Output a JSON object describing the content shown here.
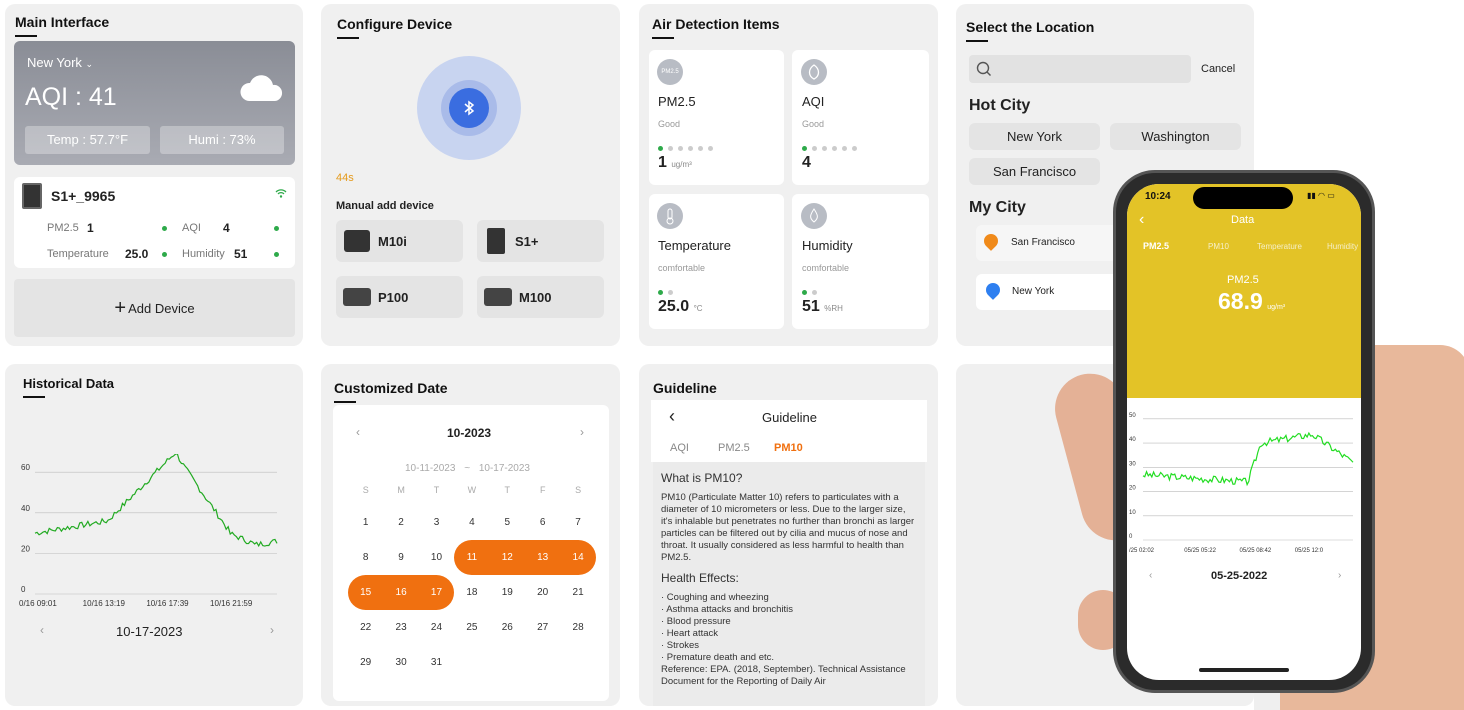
{
  "main": {
    "title": "Main Interface",
    "city": "New York",
    "aqi": "AQI : 41",
    "temp": "Temp : 57.7°F",
    "humi": "Humi : 73%",
    "device_name": "S1+_9965",
    "pm25_label": "PM2.5",
    "pm25_val": "1",
    "aqi_label": "AQI",
    "aqi_val": "4",
    "temperature_label": "Temperature",
    "temperature_val": "25.0",
    "humidity_label": "Humidity",
    "humidity_val": "51",
    "add_device": "Add Device"
  },
  "configure": {
    "title": "Configure Device",
    "timer": "44s",
    "manual": "Manual add device",
    "devices": [
      "M10i",
      "S1+",
      "P100",
      "M100"
    ]
  },
  "air": {
    "title": "Air Detection Items",
    "items": [
      {
        "name": "PM2.5",
        "status": "Good",
        "value": "1",
        "unit": "ug/m³"
      },
      {
        "name": "AQI",
        "status": "Good",
        "value": "4",
        "unit": ""
      },
      {
        "name": "Temperature",
        "status": "comfortable",
        "value": "25.0",
        "unit": "°C"
      },
      {
        "name": "Humidity",
        "status": "comfortable",
        "value": "51",
        "unit": "%RH"
      }
    ]
  },
  "location": {
    "title": "Select the Location",
    "cancel": "Cancel",
    "hot_city": "Hot City",
    "hot_cities": [
      "New York",
      "Washington",
      "San Francisco"
    ],
    "my_city": "My City",
    "my_cities": [
      "San Francisco",
      "New York"
    ]
  },
  "history": {
    "title": "Historical Data",
    "y_ticks": [
      "60",
      "40",
      "20",
      "0"
    ],
    "x_ticks": [
      "0/16 09:01",
      "10/16 13:19",
      "10/16 17:39",
      "10/16 21:59"
    ],
    "date": "10-17-2023"
  },
  "calendar": {
    "title": "Customized Date",
    "month": "10-2023",
    "range_start": "10-11-2023",
    "range_sep": "~",
    "range_end": "10-17-2023",
    "weekdays": [
      "S",
      "M",
      "T",
      "W",
      "T",
      "F",
      "S"
    ],
    "days": [
      "1",
      "2",
      "3",
      "4",
      "5",
      "6",
      "7",
      "8",
      "9",
      "10",
      "11",
      "12",
      "13",
      "14",
      "15",
      "16",
      "17",
      "18",
      "19",
      "20",
      "21",
      "22",
      "23",
      "24",
      "25",
      "26",
      "27",
      "28",
      "29",
      "30",
      "31"
    ],
    "selected": [
      "11",
      "12",
      "13",
      "14",
      "15",
      "16",
      "17"
    ],
    "accent": "#f07010"
  },
  "guideline": {
    "title": "Guideline",
    "header": "Guideline",
    "tabs": [
      "AQI",
      "PM2.5",
      "PM10"
    ],
    "active_tab": "PM10",
    "q": "What is PM10?",
    "body": "PM10 (Particulate Matter 10) refers to particulates with a diameter of 10 micrometers or less. Due to the larger size, it's inhalable but penetrates no further than bronchi as larger particles can be filtered out by cilia and mucus of nose and throat. It usually considered as less harmful to health than PM2.5.",
    "effects_title": "Health Effects:",
    "effects": [
      "· Coughing and wheezing",
      "· Asthma attacks and bronchitis",
      "· Blood pressure",
      "· Heart attack",
      "· Strokes",
      "· Premature death and etc."
    ],
    "reference": "Reference: EPA. (2018, September). Technical Assistance Document for the Reporting of Daily Air"
  },
  "phone": {
    "time": "10:24",
    "header": "Data",
    "tabs": [
      "PM2.5",
      "PM10",
      "Temperature",
      "Humidity"
    ],
    "metric": "PM2.5",
    "value": "68.9",
    "unit": "ug/m³",
    "y_ticks": [
      "50",
      "40",
      "30",
      "20",
      "10",
      "0"
    ],
    "x_ticks": [
      "/25 02:02",
      "05/25 05:22",
      "05/25 08:42",
      "05/25 12:0"
    ],
    "date": "05-25-2022",
    "accent": "#e3c327"
  }
}
